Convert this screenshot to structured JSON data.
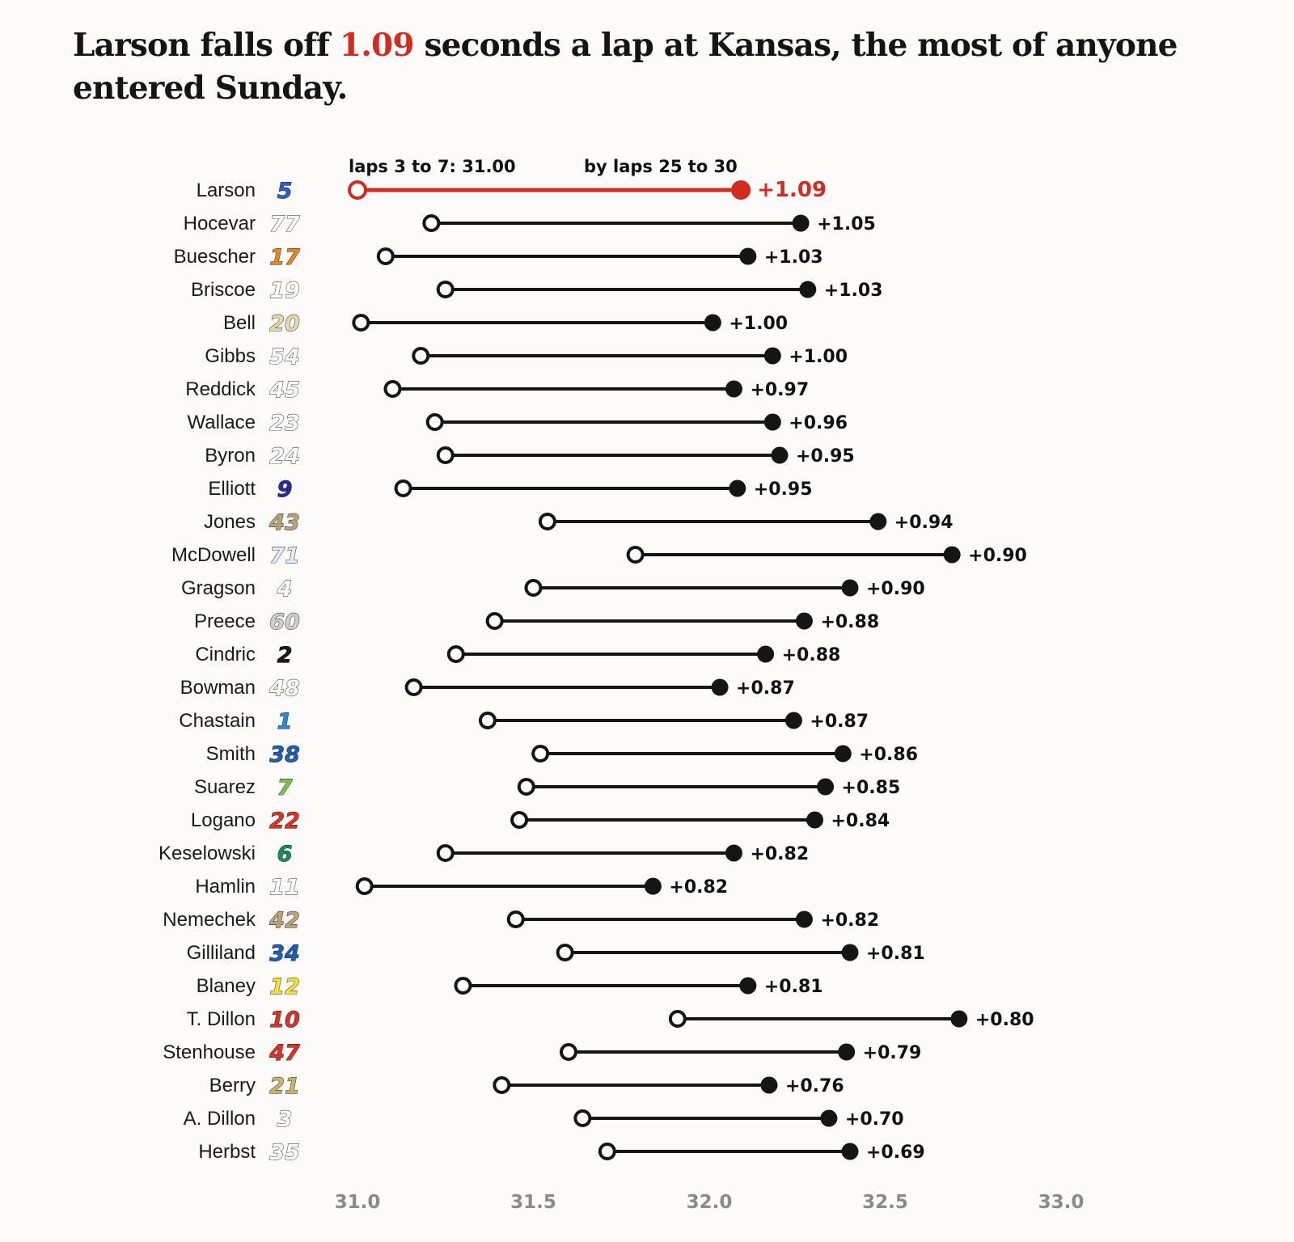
{
  "title": {
    "before": "Larson falls off ",
    "highlight": "1.09",
    "after": " seconds a lap at Kansas, the most of anyone entered Sunday."
  },
  "colors": {
    "highlight": "#d22b1f",
    "line": "#151515",
    "axis_text": "#8a8a8a",
    "background": "#fcfbf9"
  },
  "chart_data": {
    "type": "dumbbell",
    "xlim": [
      31.0,
      33.0
    ],
    "x_ticks": [
      31.0,
      31.5,
      32.0,
      32.5,
      33.0
    ],
    "x_tick_labels": [
      "31.0",
      "31.5",
      "32.0",
      "32.5",
      "33.0"
    ],
    "start_annotation": "laps 3 to 7: 31.00",
    "end_annotation": "by laps 25 to 30",
    "highlight_driver": "Larson",
    "drivers": [
      {
        "name": "Larson",
        "number": "5",
        "color": "#2b5fc7",
        "start": 31.0,
        "end": 32.09,
        "label": "+1.09"
      },
      {
        "name": "Hocevar",
        "number": "77",
        "color": "#ffffff",
        "start": 31.21,
        "end": 32.26,
        "label": "+1.05"
      },
      {
        "name": "Buescher",
        "number": "17",
        "color": "#e08a2a",
        "start": 31.08,
        "end": 32.11,
        "label": "+1.03"
      },
      {
        "name": "Briscoe",
        "number": "19",
        "color": "#ffffff",
        "start": 31.25,
        "end": 32.28,
        "label": "+1.03"
      },
      {
        "name": "Bell",
        "number": "20",
        "color": "#e4d9a8",
        "start": 31.01,
        "end": 32.01,
        "label": "+1.00"
      },
      {
        "name": "Gibbs",
        "number": "54",
        "color": "#ffffff",
        "start": 31.18,
        "end": 32.18,
        "label": "+1.00"
      },
      {
        "name": "Reddick",
        "number": "45",
        "color": "#ffffff",
        "start": 31.1,
        "end": 32.07,
        "label": "+0.97"
      },
      {
        "name": "Wallace",
        "number": "23",
        "color": "#ffffff",
        "start": 31.22,
        "end": 32.18,
        "label": "+0.96"
      },
      {
        "name": "Byron",
        "number": "24",
        "color": "#ffffff",
        "start": 31.25,
        "end": 32.2,
        "label": "+0.95"
      },
      {
        "name": "Elliott",
        "number": "9",
        "color": "#2a2a9a",
        "start": 31.13,
        "end": 32.08,
        "label": "+0.95"
      },
      {
        "name": "Jones",
        "number": "43",
        "color": "#b9a47a",
        "start": 31.54,
        "end": 32.48,
        "label": "+0.94"
      },
      {
        "name": "McDowell",
        "number": "71",
        "color": "#dfe8f5",
        "start": 31.79,
        "end": 32.69,
        "label": "+0.90"
      },
      {
        "name": "Gragson",
        "number": "4",
        "color": "#ffffff",
        "start": 31.5,
        "end": 32.4,
        "label": "+0.90"
      },
      {
        "name": "Preece",
        "number": "60",
        "color": "#cfcfcf",
        "start": 31.39,
        "end": 32.27,
        "label": "+0.88"
      },
      {
        "name": "Cindric",
        "number": "2",
        "color": "#1a1a1a",
        "start": 31.28,
        "end": 32.16,
        "label": "+0.88"
      },
      {
        "name": "Bowman",
        "number": "48",
        "color": "#ffffff",
        "start": 31.16,
        "end": 32.03,
        "label": "+0.87"
      },
      {
        "name": "Chastain",
        "number": "1",
        "color": "#2a8ad8",
        "start": 31.37,
        "end": 32.24,
        "label": "+0.87"
      },
      {
        "name": "Smith",
        "number": "38",
        "color": "#1f5fb0",
        "start": 31.52,
        "end": 32.38,
        "label": "+0.86"
      },
      {
        "name": "Suarez",
        "number": "7",
        "color": "#7cc14a",
        "start": 31.48,
        "end": 32.33,
        "label": "+0.85"
      },
      {
        "name": "Logano",
        "number": "22",
        "color": "#d8342a",
        "start": 31.46,
        "end": 32.3,
        "label": "+0.84"
      },
      {
        "name": "Keselowski",
        "number": "6",
        "color": "#1e8a5a",
        "start": 31.25,
        "end": 32.07,
        "label": "+0.82"
      },
      {
        "name": "Hamlin",
        "number": "11",
        "color": "#ffffff",
        "start": 31.02,
        "end": 31.84,
        "label": "+0.82"
      },
      {
        "name": "Nemechek",
        "number": "42",
        "color": "#b9a47a",
        "start": 31.45,
        "end": 32.27,
        "label": "+0.82"
      },
      {
        "name": "Gilliland",
        "number": "34",
        "color": "#1f5fb0",
        "start": 31.59,
        "end": 32.4,
        "label": "+0.81"
      },
      {
        "name": "Blaney",
        "number": "12",
        "color": "#f2e13a",
        "start": 31.3,
        "end": 32.11,
        "label": "+0.81"
      },
      {
        "name": "T. Dillon",
        "number": "10",
        "color": "#d8342a",
        "start": 31.91,
        "end": 32.71,
        "label": "+0.80"
      },
      {
        "name": "Stenhouse",
        "number": "47",
        "color": "#d8342a",
        "start": 31.6,
        "end": 32.39,
        "label": "+0.79"
      },
      {
        "name": "Berry",
        "number": "21",
        "color": "#c9b46a",
        "start": 31.41,
        "end": 32.17,
        "label": "+0.76"
      },
      {
        "name": "A. Dillon",
        "number": "3",
        "color": "#ffffff",
        "start": 31.64,
        "end": 32.34,
        "label": "+0.70"
      },
      {
        "name": "Herbst",
        "number": "35",
        "color": "#ffffff",
        "start": 31.71,
        "end": 32.4,
        "label": "+0.69"
      }
    ]
  }
}
